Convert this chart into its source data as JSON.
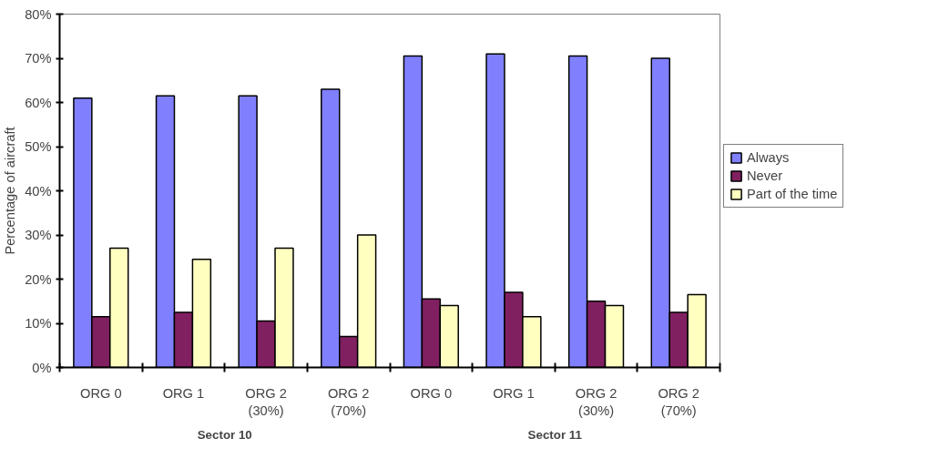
{
  "chart_data": {
    "type": "bar",
    "ylabel": "Percentage of aircraft",
    "categories": [
      "ORG 0",
      "ORG 1",
      "ORG 2\n(30%)",
      "ORG 2\n(70%)",
      "ORG 0",
      "ORG 1",
      "ORG 2\n(30%)",
      "ORG 2\n(70%)"
    ],
    "series": [
      {
        "name": "Always",
        "color": "#8080ff",
        "values": [
          61,
          61.5,
          61.5,
          63,
          70.5,
          71,
          70.5,
          70
        ]
      },
      {
        "name": "Never",
        "color": "#802060",
        "values": [
          11.5,
          12.5,
          10.5,
          7,
          15.5,
          17,
          15,
          12.5
        ]
      },
      {
        "name": "Part of the time",
        "color": "#ffffc0",
        "values": [
          27,
          24.5,
          27,
          30,
          14,
          11.5,
          14,
          16.5
        ]
      }
    ],
    "ylim": [
      0,
      80
    ],
    "yticks": [
      {
        "value": 0,
        "label": "0%"
      },
      {
        "value": 10,
        "label": "10%"
      },
      {
        "value": 20,
        "label": "20%"
      },
      {
        "value": 30,
        "label": "30%"
      },
      {
        "value": 40,
        "label": "40%"
      },
      {
        "value": 50,
        "label": "50%"
      },
      {
        "value": 60,
        "label": "60%"
      },
      {
        "value": 70,
        "label": "70%"
      },
      {
        "value": 80,
        "label": "80%"
      }
    ],
    "annotations": [
      "Sector 10",
      "Sector 11"
    ],
    "grid": false,
    "legend": "right"
  }
}
